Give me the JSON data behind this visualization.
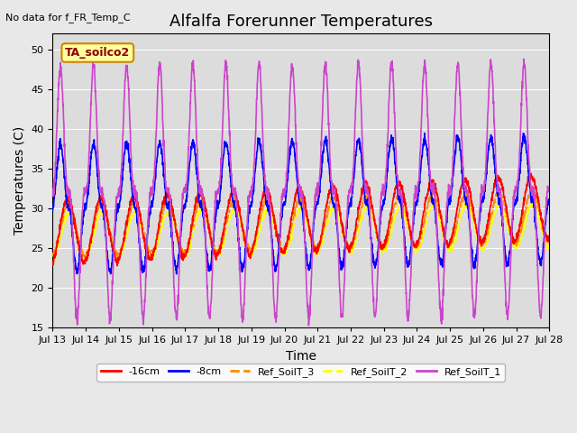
{
  "title": "Alfalfa Forerunner Temperatures",
  "ylabel": "Temperatures (C)",
  "xlabel": "Time",
  "annotation_text": "No data for f_FR_Temp_C",
  "legend_label_text": "TA_soilco2",
  "ylim": [
    15,
    52
  ],
  "yticks": [
    15,
    20,
    25,
    30,
    35,
    40,
    45,
    50
  ],
  "series": {
    "neg16cm": {
      "label": "-16cm",
      "color": "#ff0000",
      "linewidth": 1.2
    },
    "neg8cm": {
      "label": "-8cm",
      "color": "#0000ff",
      "linewidth": 1.2
    },
    "ref3": {
      "label": "Ref_SoilT_3",
      "color": "#ff8c00",
      "linewidth": 1.2,
      "linestyle": "--"
    },
    "ref2": {
      "label": "Ref_SoilT_2",
      "color": "#ffff00",
      "linewidth": 1.2,
      "linestyle": "--"
    },
    "ref1": {
      "label": "Ref_SoilT_1",
      "color": "#cc44cc",
      "linewidth": 1.2
    }
  },
  "x_tick_labels": [
    "Jul 13",
    "Jul 14",
    "Jul 15",
    "Jul 16",
    "Jul 17",
    "Jul 18",
    "Jul 19",
    "Jul 20",
    "Jul 21",
    "Jul 22",
    "Jul 23",
    "Jul 24",
    "Jul 25",
    "Jul 26",
    "Jul 27",
    "Jul 28"
  ],
  "n_days": 15,
  "pts_per_day": 144,
  "fig_bg": "#e8e8e8",
  "plot_bg": "#dcdcdc",
  "title_fontsize": 13,
  "label_fontsize": 10,
  "tick_fontsize": 8
}
